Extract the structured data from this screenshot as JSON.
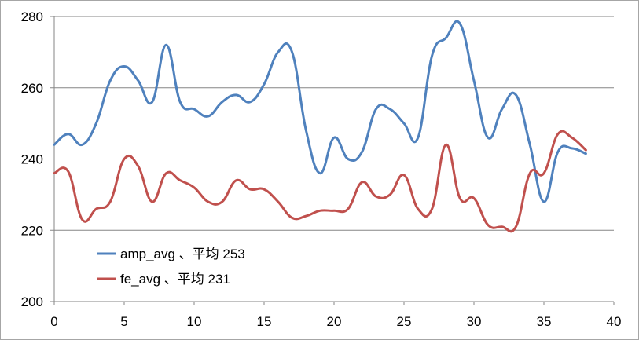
{
  "chart_data": {
    "type": "line",
    "title": "",
    "xlabel": "",
    "ylabel": "",
    "xlim": [
      0,
      40
    ],
    "ylim": [
      200,
      280
    ],
    "x_ticks": [
      0,
      5,
      10,
      15,
      20,
      25,
      30,
      35,
      40
    ],
    "y_ticks": [
      200,
      220,
      240,
      260,
      280
    ],
    "grid": "horizontal",
    "legend_position": "bottom-left",
    "series": [
      {
        "name": "amp_avg 、平均 253",
        "color": "#4f81bd",
        "x": [
          0,
          1,
          2,
          3,
          4,
          5,
          6,
          7,
          8,
          9,
          10,
          11,
          12,
          13,
          14,
          15,
          16,
          17,
          18,
          19,
          20,
          21,
          22,
          23,
          24,
          25,
          26,
          27,
          28,
          29,
          30,
          31,
          32,
          33,
          34,
          35,
          36,
          37,
          38
        ],
        "values": [
          244,
          247,
          244,
          250,
          262,
          266,
          262,
          256,
          272,
          256,
          254,
          252,
          256,
          258,
          256,
          261,
          270,
          270,
          248,
          236,
          246,
          240,
          242,
          254,
          254,
          250,
          246,
          269,
          274,
          278,
          262,
          246,
          254,
          258,
          244,
          228,
          242,
          243,
          241.5
        ]
      },
      {
        "name": "fe_avg 、平均 231",
        "color": "#c0504d",
        "x": [
          0,
          1,
          2,
          3,
          4,
          5,
          6,
          7,
          8,
          9,
          10,
          11,
          12,
          13,
          14,
          15,
          16,
          17,
          18,
          19,
          20,
          21,
          22,
          23,
          24,
          25,
          26,
          27,
          28,
          29,
          30,
          31,
          32,
          33,
          34,
          35,
          36,
          37,
          38
        ],
        "values": [
          236,
          236.5,
          223,
          226,
          228,
          240,
          238,
          228,
          236,
          234,
          232,
          228,
          228,
          234,
          231.5,
          231.5,
          228,
          223.5,
          224,
          225.5,
          225.5,
          226,
          233.5,
          229.5,
          230,
          235.5,
          226,
          226,
          244,
          229,
          229,
          221.5,
          221,
          221,
          236,
          236,
          247,
          246,
          242.5
        ]
      }
    ]
  }
}
